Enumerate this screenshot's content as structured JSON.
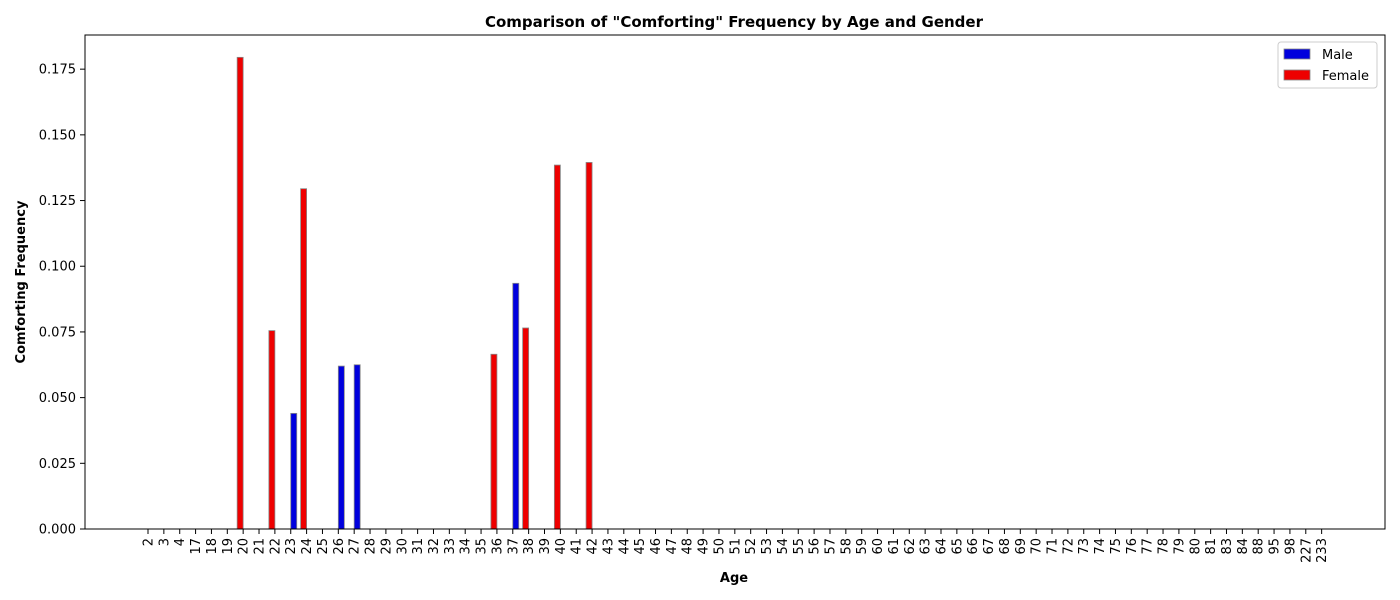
{
  "chart_data": {
    "type": "bar",
    "title": "Comparison of \"Comforting\" Frequency by Age and Gender",
    "xlabel": "Age",
    "ylabel": "Comforting Frequency",
    "ylim": [
      0,
      0.188
    ],
    "yticks": [
      0.0,
      0.025,
      0.05,
      0.075,
      0.1,
      0.125,
      0.15,
      0.175
    ],
    "ytick_labels": [
      "0.000",
      "0.025",
      "0.050",
      "0.075",
      "0.100",
      "0.125",
      "0.150",
      "0.175"
    ],
    "grid": false,
    "legend_position": "top-right",
    "categories": [
      "2",
      "3",
      "4",
      "17",
      "18",
      "19",
      "20",
      "21",
      "22",
      "23",
      "24",
      "25",
      "26",
      "27",
      "28",
      "29",
      "30",
      "31",
      "32",
      "33",
      "34",
      "35",
      "36",
      "37",
      "38",
      "39",
      "40",
      "41",
      "42",
      "43",
      "44",
      "45",
      "46",
      "47",
      "48",
      "49",
      "50",
      "51",
      "52",
      "53",
      "54",
      "55",
      "56",
      "57",
      "58",
      "59",
      "60",
      "61",
      "62",
      "63",
      "64",
      "65",
      "66",
      "67",
      "68",
      "69",
      "70",
      "71",
      "72",
      "73",
      "74",
      "75",
      "76",
      "77",
      "78",
      "79",
      "80",
      "81",
      "83",
      "84",
      "88",
      "95",
      "98",
      "227",
      "233"
    ],
    "series": [
      {
        "name": "Male",
        "color": "#0000dd",
        "values": [
          0,
          0,
          0,
          0,
          0,
          0,
          0,
          0,
          0,
          0.044,
          0,
          0,
          0.062,
          0.0625,
          0,
          0,
          0,
          0,
          0,
          0,
          0,
          0,
          0,
          0.0935,
          0,
          0,
          0,
          0,
          0,
          0,
          0,
          0,
          0,
          0,
          0,
          0,
          0,
          0,
          0,
          0,
          0,
          0,
          0,
          0,
          0,
          0,
          0,
          0,
          0,
          0,
          0,
          0,
          0,
          0,
          0,
          0,
          0,
          0,
          0,
          0,
          0,
          0,
          0,
          0,
          0,
          0,
          0,
          0,
          0,
          0,
          0,
          0,
          0,
          0,
          0
        ]
      },
      {
        "name": "Female",
        "color": "#ee0000",
        "values": [
          0,
          0,
          0,
          0,
          0,
          0,
          0.1795,
          0,
          0.0755,
          0,
          0.1295,
          0,
          0,
          0,
          0,
          0,
          0,
          0,
          0,
          0,
          0,
          0,
          0.0665,
          0,
          0.0765,
          0,
          0.1385,
          0,
          0.1395,
          0,
          0,
          0,
          0,
          0,
          0,
          0,
          0,
          0,
          0,
          0,
          0,
          0,
          0,
          0,
          0,
          0,
          0,
          0,
          0,
          0,
          0,
          0,
          0,
          0,
          0,
          0,
          0,
          0,
          0,
          0,
          0,
          0,
          0,
          0,
          0,
          0,
          0,
          0,
          0,
          0,
          0,
          0,
          0,
          0,
          0
        ]
      }
    ]
  }
}
